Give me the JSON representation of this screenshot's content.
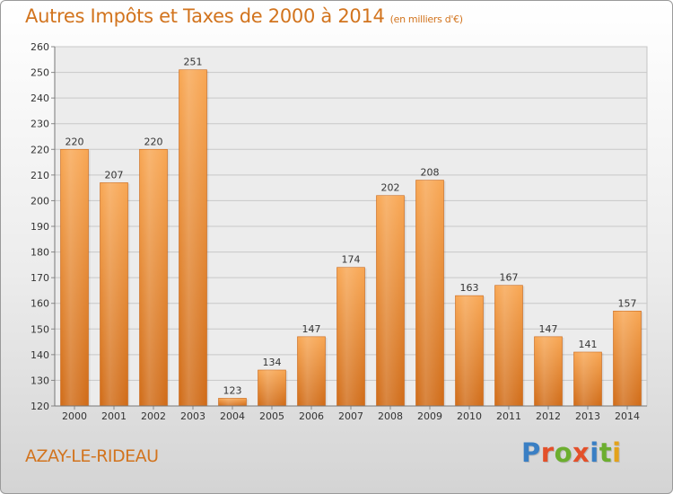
{
  "title": "Autres Impôts et Taxes de 2000 à 2014",
  "title_unit": "(en milliers d'€)",
  "location": "AZAY-LE-RIDEAU",
  "brand": {
    "letters": [
      "P",
      "r",
      "o",
      "x",
      "i",
      "t",
      "i"
    ],
    "colors": [
      "#3a7fc4",
      "#e3502a",
      "#6cae2f",
      "#e3502a",
      "#3a7fc4",
      "#6cae2f",
      "#e3a21a"
    ]
  },
  "chart_data": {
    "type": "bar",
    "title": "Autres Impôts et Taxes de 2000 à 2014",
    "categories": [
      "2000",
      "2001",
      "2002",
      "2003",
      "2004",
      "2005",
      "2006",
      "2007",
      "2008",
      "2009",
      "2010",
      "2011",
      "2012",
      "2013",
      "2014"
    ],
    "values": [
      220,
      207,
      220,
      251,
      123,
      134,
      147,
      174,
      202,
      208,
      163,
      167,
      147,
      141,
      157
    ],
    "ylim": [
      120,
      260
    ],
    "yticks": [
      120,
      130,
      140,
      150,
      160,
      170,
      180,
      190,
      200,
      210,
      220,
      230,
      240,
      250,
      260
    ],
    "grid": true,
    "bar_color": "#f08a2c"
  }
}
